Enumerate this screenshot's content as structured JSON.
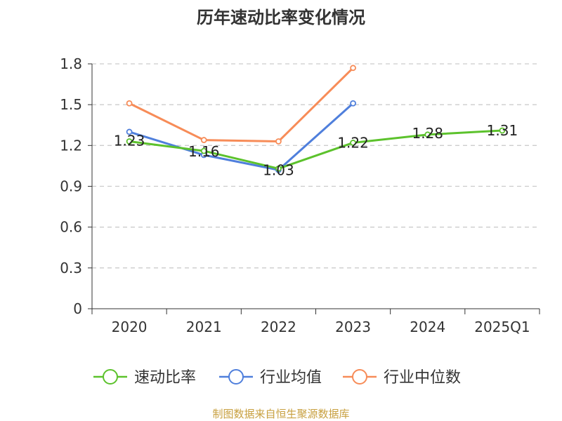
{
  "chart_data": {
    "type": "line",
    "title": "历年速动比率变化情况",
    "categories": [
      "2020",
      "2021",
      "2022",
      "2023",
      "2024",
      "2025Q1"
    ],
    "ylim": [
      0,
      1.8
    ],
    "yticks": [
      "0",
      "0.3",
      "0.6",
      "0.9",
      "1.2",
      "1.5",
      "1.8"
    ],
    "grid": true,
    "legend_position": "bottom",
    "series": [
      {
        "name": "速动比率",
        "color": "#5cc22c",
        "values": [
          1.23,
          1.16,
          1.03,
          1.22,
          1.28,
          1.31
        ],
        "labels": [
          "1.23",
          "1.16",
          "1.03",
          "1.22",
          "1.28",
          "1.31"
        ]
      },
      {
        "name": "行业均值",
        "color": "#4f7fdc",
        "values": [
          1.3,
          1.13,
          1.02,
          1.51,
          null,
          null
        ]
      },
      {
        "name": "行业中位数",
        "color": "#f78c58",
        "values": [
          1.51,
          1.24,
          1.23,
          1.77,
          null,
          null
        ]
      }
    ]
  },
  "source_text": "制图数据来自恒生聚源数据库"
}
